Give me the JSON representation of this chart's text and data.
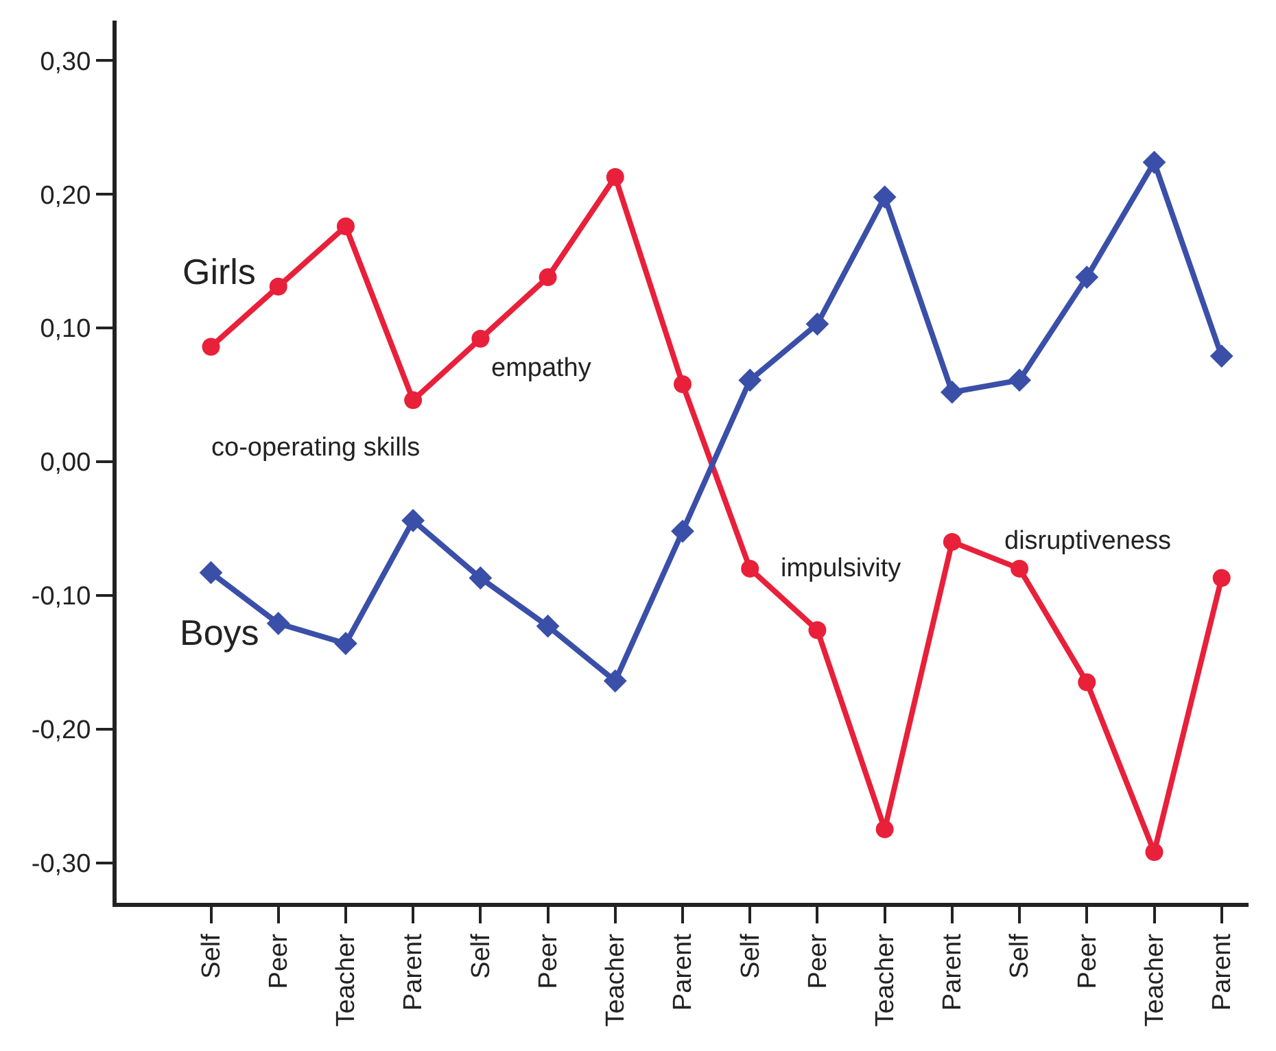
{
  "chart_data": {
    "type": "line",
    "categories": [
      "Self",
      "Peer",
      "Teacher",
      "Parent",
      "Self",
      "Peer",
      "Teacher",
      "Parent",
      "Self",
      "Peer",
      "Teacher",
      "Parent",
      "Self",
      "Peer",
      "Teacher",
      "Parent"
    ],
    "series": [
      {
        "name": "Girls",
        "color": "#e8203a",
        "marker": "circle",
        "values": [
          0.086,
          0.131,
          0.176,
          0.046,
          0.092,
          0.138,
          0.213,
          0.058,
          -0.08,
          -0.126,
          -0.275,
          -0.06,
          -0.08,
          -0.165,
          -0.292,
          -0.087
        ]
      },
      {
        "name": "Boys",
        "color": "#3a4fa8",
        "marker": "diamond",
        "values": [
          -0.083,
          -0.121,
          -0.136,
          -0.044,
          -0.087,
          -0.123,
          -0.164,
          -0.052,
          0.061,
          0.103,
          0.198,
          0.052,
          0.061,
          0.138,
          0.224,
          0.079
        ]
      }
    ],
    "annotations": [
      "co-operating skills",
      "empathy",
      "impulsivity",
      "disruptiveness"
    ],
    "ylim": [
      -0.33,
      0.33
    ],
    "yticks": [
      {
        "value": -0.3,
        "label": "-0,30"
      },
      {
        "value": -0.2,
        "label": "-0,20"
      },
      {
        "value": -0.1,
        "label": "-0,10"
      },
      {
        "value": 0,
        "label": "0,00"
      },
      {
        "value": 0.1,
        "label": "0,10"
      },
      {
        "value": 0.2,
        "label": "0,20"
      },
      {
        "value": 0.3,
        "label": "0,30"
      }
    ],
    "grid": false,
    "legend": false,
    "line_style": "solid"
  }
}
